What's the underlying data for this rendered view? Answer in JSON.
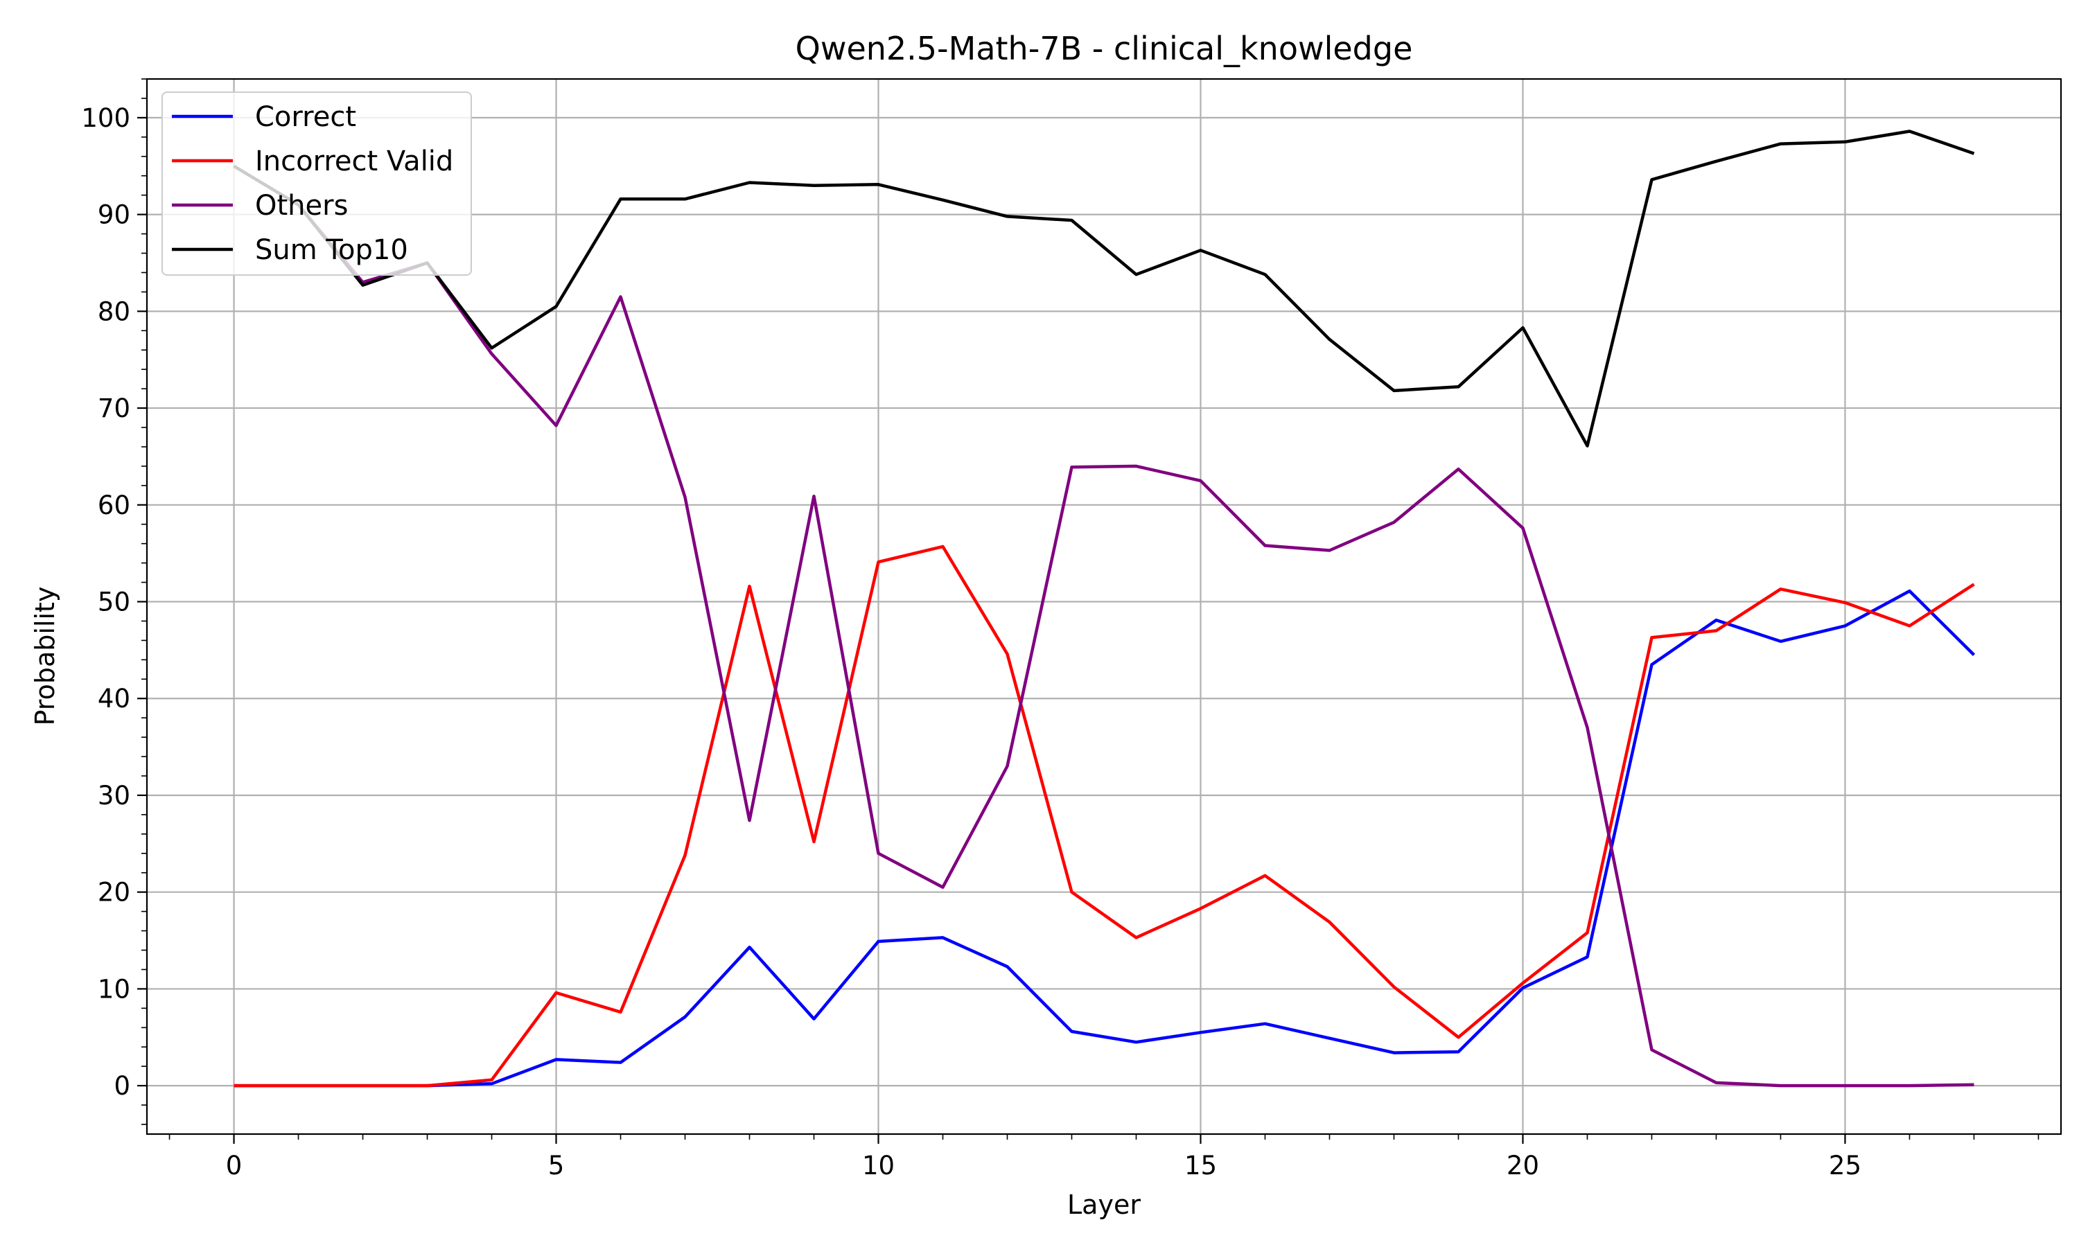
{
  "chart_data": {
    "type": "line",
    "title": "Qwen2.5-Math-7B - clinical_knowledge",
    "xlabel": "Layer",
    "ylabel": "Probability",
    "xlim": [
      -1.35,
      28.35
    ],
    "ylim": [
      -5,
      104
    ],
    "xticks": [
      0,
      5,
      10,
      15,
      20,
      25
    ],
    "yticks": [
      0,
      10,
      20,
      30,
      40,
      50,
      60,
      70,
      80,
      90,
      100
    ],
    "grid": true,
    "legend_position": "top-left",
    "x": [
      0,
      1,
      2,
      3,
      4,
      5,
      6,
      7,
      8,
      9,
      10,
      11,
      12,
      13,
      14,
      15,
      16,
      17,
      18,
      19,
      20,
      21,
      22,
      23,
      24,
      25,
      26,
      27
    ],
    "series": [
      {
        "name": "Correct",
        "color": "#0000ff",
        "values": [
          0,
          0,
          0,
          0,
          0.2,
          2.7,
          2.4,
          7.1,
          14.3,
          6.9,
          14.9,
          15.3,
          12.3,
          5.6,
          4.5,
          5.5,
          6.4,
          4.9,
          3.4,
          3.5,
          10.1,
          13.3,
          43.5,
          48.1,
          45.9,
          47.5,
          51.1,
          44.5
        ]
      },
      {
        "name": "Incorrect Valid",
        "color": "#ff0000",
        "values": [
          0,
          0,
          0,
          0,
          0.6,
          9.6,
          7.6,
          23.8,
          51.6,
          25.2,
          54.1,
          55.7,
          44.6,
          20,
          15.3,
          18.3,
          21.7,
          16.9,
          10.2,
          5,
          10.6,
          15.8,
          46.3,
          47,
          51.3,
          49.9,
          47.5,
          51.8
        ]
      },
      {
        "name": "Others",
        "color": "#800080",
        "values": [
          95,
          91,
          83,
          85,
          75.6,
          68.2,
          81.5,
          60.8,
          27.4,
          60.9,
          24,
          20.5,
          33,
          63.9,
          64,
          62.5,
          55.8,
          55.3,
          58.2,
          63.7,
          57.6,
          37,
          3.7,
          0.3,
          0,
          0,
          0,
          0.1
        ]
      },
      {
        "name": "Sum Top10",
        "color": "#000000",
        "values": [
          95,
          91,
          82.7,
          85,
          76.2,
          80.5,
          91.6,
          91.6,
          93.3,
          93,
          93.1,
          91.5,
          89.8,
          89.4,
          83.8,
          86.3,
          83.8,
          77.1,
          71.8,
          72.2,
          78.3,
          66.1,
          93.6,
          95.5,
          97.3,
          97.5,
          98.6,
          96.3
        ]
      }
    ]
  }
}
